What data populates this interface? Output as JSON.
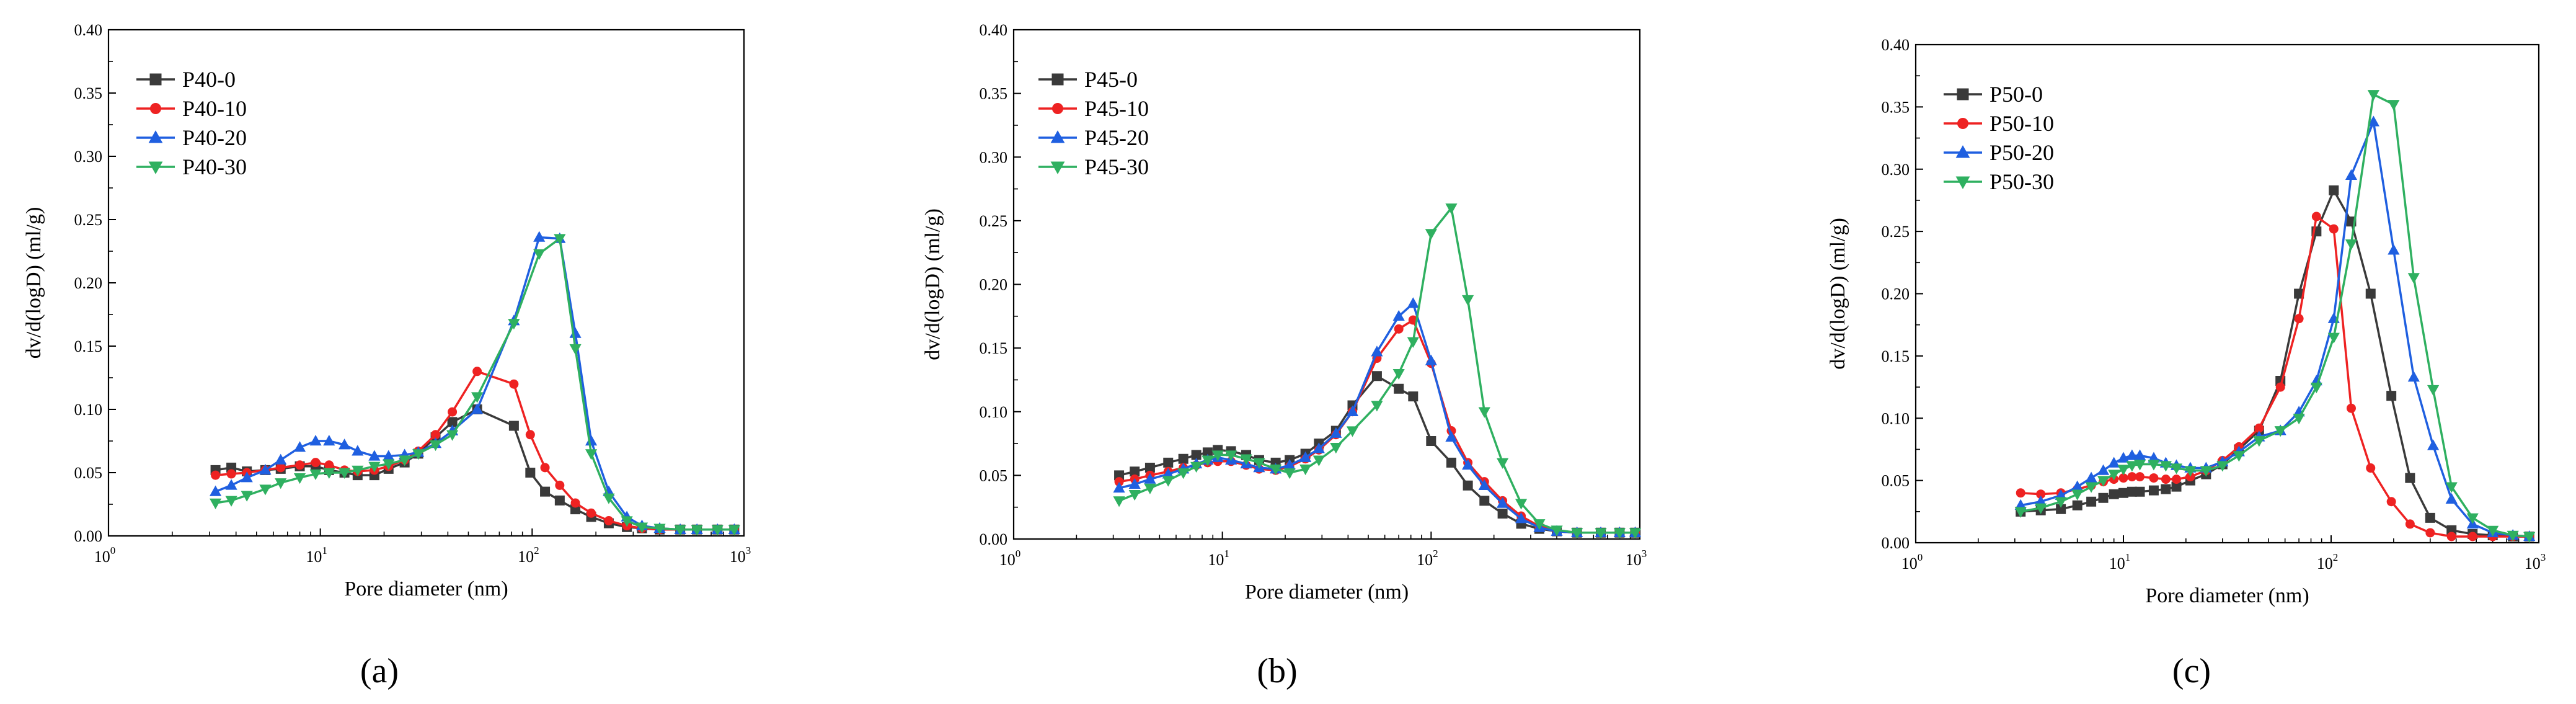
{
  "colors": {
    "gray": "#3a3a3a",
    "red": "#ee2222",
    "blue": "#1f5fe0",
    "green": "#2fb060"
  },
  "chart_data": [
    {
      "type": "line",
      "panel": "a",
      "caption": "(a)",
      "xlabel": "Pore diameter (nm)",
      "ylabel": "dv/d(logD) (ml/g)",
      "xscale": "log",
      "xlim": [
        1,
        1000
      ],
      "ylim": [
        0,
        0.4
      ],
      "yticks": [
        "0.00",
        "0.05",
        "0.10",
        "0.15",
        "0.20",
        "0.25",
        "0.30",
        "0.35",
        "0.40"
      ],
      "xticks": [
        {
          "base": "10",
          "exp": "0"
        },
        {
          "base": "10",
          "exp": "1"
        },
        {
          "base": "10",
          "exp": "2"
        },
        {
          "base": "10",
          "exp": "3"
        }
      ],
      "legend_position": "top-left",
      "series": [
        {
          "name": "P40-0",
          "color": "gray",
          "marker": "square",
          "x": [
            3.2,
            3.8,
            4.5,
            5.5,
            6.5,
            8,
            9.5,
            11,
            13,
            15,
            18,
            21,
            25,
            29,
            35,
            42,
            55,
            82,
            98,
            115,
            135,
            160,
            190,
            230,
            280,
            330,
            400,
            500,
            600,
            750,
            900
          ],
          "y": [
            0.052,
            0.054,
            0.051,
            0.052,
            0.053,
            0.055,
            0.055,
            0.052,
            0.05,
            0.048,
            0.048,
            0.053,
            0.058,
            0.065,
            0.078,
            0.09,
            0.1,
            0.087,
            0.05,
            0.035,
            0.028,
            0.021,
            0.015,
            0.01,
            0.007,
            0.006,
            0.005,
            0.005,
            0.005,
            0.005,
            0.005
          ]
        },
        {
          "name": "P40-10",
          "color": "red",
          "marker": "circle",
          "x": [
            3.2,
            3.8,
            4.5,
            5.5,
            6.5,
            8,
            9.5,
            11,
            13,
            15,
            18,
            21,
            25,
            29,
            35,
            42,
            55,
            82,
            98,
            115,
            135,
            160,
            190,
            230,
            280,
            330,
            400,
            500,
            600,
            750,
            900
          ],
          "y": [
            0.048,
            0.049,
            0.05,
            0.052,
            0.054,
            0.056,
            0.058,
            0.056,
            0.052,
            0.051,
            0.052,
            0.055,
            0.06,
            0.067,
            0.08,
            0.098,
            0.13,
            0.12,
            0.08,
            0.054,
            0.04,
            0.026,
            0.018,
            0.012,
            0.008,
            0.006,
            0.005,
            0.005,
            0.005,
            0.005,
            0.005
          ]
        },
        {
          "name": "P40-20",
          "color": "blue",
          "marker": "triangle-up",
          "x": [
            3.2,
            3.8,
            4.5,
            5.5,
            6.5,
            8,
            9.5,
            11,
            13,
            15,
            18,
            21,
            25,
            29,
            35,
            42,
            55,
            82,
            108,
            135,
            160,
            190,
            230,
            280,
            330,
            400,
            500,
            600,
            750,
            900
          ],
          "y": [
            0.035,
            0.04,
            0.046,
            0.052,
            0.06,
            0.07,
            0.075,
            0.075,
            0.072,
            0.067,
            0.063,
            0.063,
            0.064,
            0.066,
            0.073,
            0.083,
            0.1,
            0.17,
            0.236,
            0.235,
            0.16,
            0.075,
            0.035,
            0.015,
            0.008,
            0.006,
            0.005,
            0.005,
            0.005,
            0.005
          ]
        },
        {
          "name": "P40-30",
          "color": "green",
          "marker": "triangle-down",
          "x": [
            3.2,
            3.8,
            4.5,
            5.5,
            6.5,
            8,
            9.5,
            11,
            13,
            15,
            18,
            21,
            25,
            29,
            35,
            42,
            55,
            82,
            108,
            135,
            160,
            190,
            230,
            280,
            330,
            400,
            500,
            600,
            750,
            900
          ],
          "y": [
            0.026,
            0.028,
            0.032,
            0.037,
            0.042,
            0.046,
            0.049,
            0.05,
            0.05,
            0.052,
            0.055,
            0.057,
            0.06,
            0.065,
            0.072,
            0.08,
            0.11,
            0.168,
            0.223,
            0.235,
            0.148,
            0.065,
            0.03,
            0.012,
            0.007,
            0.006,
            0.005,
            0.005,
            0.005,
            0.005
          ]
        }
      ]
    },
    {
      "type": "line",
      "panel": "b",
      "caption": "(b)",
      "xlabel": "Pore diameter (nm)",
      "ylabel": "dv/d(logD) (ml/g)",
      "xscale": "log",
      "xlim": [
        1,
        1000
      ],
      "ylim": [
        0,
        0.4
      ],
      "yticks": [
        "0.00",
        "0.05",
        "0.10",
        "0.15",
        "0.20",
        "0.25",
        "0.30",
        "0.35",
        "0.40"
      ],
      "xticks": [
        {
          "base": "10",
          "exp": "0"
        },
        {
          "base": "10",
          "exp": "1"
        },
        {
          "base": "10",
          "exp": "2"
        },
        {
          "base": "10",
          "exp": "3"
        }
      ],
      "legend_position": "top-left",
      "series": [
        {
          "name": "P45-0",
          "color": "gray",
          "marker": "square",
          "x": [
            3.2,
            3.8,
            4.5,
            5.5,
            6.5,
            7.5,
            8.5,
            9.5,
            11,
            13,
            15,
            18,
            21,
            25,
            29,
            35,
            42,
            55,
            70,
            82,
            100,
            125,
            150,
            180,
            220,
            270,
            330,
            400,
            500,
            650,
            800,
            950
          ],
          "y": [
            0.05,
            0.053,
            0.056,
            0.06,
            0.063,
            0.066,
            0.068,
            0.07,
            0.069,
            0.066,
            0.062,
            0.06,
            0.062,
            0.067,
            0.075,
            0.085,
            0.105,
            0.128,
            0.118,
            0.112,
            0.077,
            0.06,
            0.042,
            0.03,
            0.02,
            0.012,
            0.008,
            0.006,
            0.005,
            0.005,
            0.005,
            0.005
          ]
        },
        {
          "name": "P45-10",
          "color": "red",
          "marker": "circle",
          "x": [
            3.2,
            3.8,
            4.5,
            5.5,
            6.5,
            7.5,
            8.5,
            9.5,
            11,
            13,
            15,
            18,
            21,
            25,
            29,
            35,
            42,
            55,
            70,
            82,
            100,
            125,
            150,
            180,
            220,
            270,
            330,
            400,
            500,
            650,
            800,
            950
          ],
          "y": [
            0.045,
            0.047,
            0.05,
            0.053,
            0.056,
            0.058,
            0.06,
            0.061,
            0.061,
            0.058,
            0.055,
            0.054,
            0.057,
            0.063,
            0.07,
            0.082,
            0.1,
            0.142,
            0.165,
            0.172,
            0.138,
            0.085,
            0.06,
            0.045,
            0.03,
            0.018,
            0.01,
            0.006,
            0.005,
            0.005,
            0.005,
            0.005
          ]
        },
        {
          "name": "P45-20",
          "color": "blue",
          "marker": "triangle-up",
          "x": [
            3.2,
            3.8,
            4.5,
            5.5,
            6.5,
            7.5,
            8.5,
            9.5,
            11,
            13,
            15,
            18,
            21,
            25,
            29,
            35,
            42,
            55,
            70,
            82,
            100,
            125,
            150,
            180,
            220,
            270,
            330,
            400,
            500,
            650,
            800,
            950
          ],
          "y": [
            0.04,
            0.043,
            0.047,
            0.051,
            0.055,
            0.059,
            0.062,
            0.064,
            0.062,
            0.059,
            0.056,
            0.055,
            0.058,
            0.064,
            0.071,
            0.083,
            0.1,
            0.147,
            0.175,
            0.185,
            0.14,
            0.08,
            0.058,
            0.042,
            0.028,
            0.016,
            0.009,
            0.006,
            0.005,
            0.005,
            0.005,
            0.005
          ]
        },
        {
          "name": "P45-30",
          "color": "green",
          "marker": "triangle-down",
          "x": [
            3.2,
            3.8,
            4.5,
            5.5,
            6.5,
            7.5,
            8.5,
            9.5,
            11,
            13,
            15,
            18,
            21,
            25,
            29,
            35,
            42,
            55,
            70,
            82,
            100,
            125,
            150,
            180,
            220,
            270,
            330,
            400,
            500,
            650,
            800,
            950
          ],
          "y": [
            0.03,
            0.035,
            0.04,
            0.046,
            0.052,
            0.057,
            0.062,
            0.066,
            0.066,
            0.063,
            0.06,
            0.055,
            0.052,
            0.055,
            0.062,
            0.072,
            0.085,
            0.105,
            0.13,
            0.155,
            0.24,
            0.26,
            0.188,
            0.1,
            0.06,
            0.028,
            0.012,
            0.007,
            0.005,
            0.005,
            0.005,
            0.005
          ]
        }
      ]
    },
    {
      "type": "line",
      "panel": "c",
      "caption": "(c)",
      "xlabel": "Pore diameter (nm)",
      "ylabel": "dv/d(logD) (ml/g)",
      "xscale": "log",
      "xlim": [
        1,
        1000
      ],
      "ylim": [
        0,
        0.4
      ],
      "yticks": [
        "0.00",
        "0.05",
        "0.10",
        "0.15",
        "0.20",
        "0.25",
        "0.30",
        "0.35",
        "0.40"
      ],
      "xticks": [
        {
          "base": "10",
          "exp": "0"
        },
        {
          "base": "10",
          "exp": "1"
        },
        {
          "base": "10",
          "exp": "2"
        },
        {
          "base": "10",
          "exp": "3"
        }
      ],
      "legend_position": "top-left",
      "series": [
        {
          "name": "P50-0",
          "color": "gray",
          "marker": "square",
          "x": [
            3.2,
            4,
            5,
            6,
            7,
            8,
            9,
            10,
            11,
            12,
            14,
            16,
            18,
            21,
            25,
            30,
            36,
            45,
            57,
            70,
            85,
            103,
            125,
            155,
            195,
            240,
            300,
            380,
            480,
            600,
            750,
            900
          ],
          "y": [
            0.025,
            0.026,
            0.027,
            0.03,
            0.033,
            0.036,
            0.039,
            0.04,
            0.041,
            0.041,
            0.042,
            0.043,
            0.045,
            0.05,
            0.055,
            0.063,
            0.075,
            0.09,
            0.13,
            0.2,
            0.25,
            0.283,
            0.258,
            0.2,
            0.118,
            0.052,
            0.02,
            0.01,
            0.007,
            0.006,
            0.005,
            0.005
          ]
        },
        {
          "name": "P50-10",
          "color": "red",
          "marker": "circle",
          "x": [
            3.2,
            4,
            5,
            6,
            7,
            8,
            9,
            10,
            11,
            12,
            14,
            16,
            18,
            21,
            25,
            30,
            36,
            45,
            57,
            70,
            85,
            103,
            125,
            155,
            195,
            240,
            300,
            380,
            480,
            600,
            750,
            900
          ],
          "y": [
            0.04,
            0.039,
            0.04,
            0.043,
            0.046,
            0.049,
            0.051,
            0.052,
            0.053,
            0.053,
            0.052,
            0.051,
            0.051,
            0.053,
            0.058,
            0.066,
            0.077,
            0.092,
            0.125,
            0.18,
            0.262,
            0.252,
            0.108,
            0.06,
            0.033,
            0.015,
            0.008,
            0.005,
            0.005,
            0.005,
            0.005,
            0.005
          ]
        },
        {
          "name": "P50-20",
          "color": "blue",
          "marker": "triangle-up",
          "x": [
            3.2,
            4,
            5,
            6,
            7,
            8,
            9,
            10,
            11,
            12,
            14,
            16,
            18,
            21,
            25,
            30,
            36,
            45,
            57,
            70,
            85,
            103,
            125,
            160,
            200,
            250,
            310,
            380,
            480,
            600,
            750,
            900
          ],
          "y": [
            0.03,
            0.033,
            0.038,
            0.045,
            0.052,
            0.058,
            0.064,
            0.068,
            0.07,
            0.07,
            0.068,
            0.064,
            0.062,
            0.06,
            0.06,
            0.065,
            0.073,
            0.085,
            0.09,
            0.105,
            0.13,
            0.18,
            0.295,
            0.338,
            0.235,
            0.133,
            0.078,
            0.035,
            0.015,
            0.008,
            0.006,
            0.005
          ]
        },
        {
          "name": "P50-30",
          "color": "green",
          "marker": "triangle-down",
          "x": [
            3.2,
            4,
            5,
            6,
            7,
            8,
            9,
            10,
            11,
            12,
            14,
            16,
            18,
            21,
            25,
            30,
            36,
            45,
            57,
            70,
            85,
            103,
            125,
            160,
            200,
            250,
            310,
            380,
            480,
            600,
            750,
            900
          ],
          "y": [
            0.025,
            0.028,
            0.033,
            0.039,
            0.045,
            0.05,
            0.055,
            0.059,
            0.062,
            0.063,
            0.063,
            0.062,
            0.06,
            0.058,
            0.058,
            0.062,
            0.07,
            0.082,
            0.09,
            0.1,
            0.125,
            0.165,
            0.24,
            0.36,
            0.352,
            0.213,
            0.123,
            0.045,
            0.02,
            0.01,
            0.006,
            0.005
          ]
        }
      ]
    }
  ]
}
